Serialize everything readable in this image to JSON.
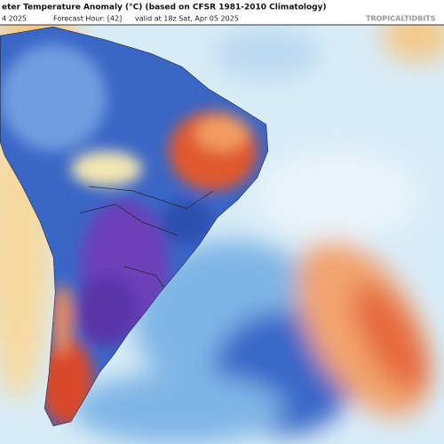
{
  "header": {
    "title": "eter Temperature Anomaly (°C) (based on CFSR 1981-2010 Climatology)",
    "run": "4 2025",
    "forecast_hour": "Forecast Hour: [42]",
    "valid": "valid at 18z Sat, Apr 05 2025"
  },
  "watermark": "TROPICALTIDBITS"
}
